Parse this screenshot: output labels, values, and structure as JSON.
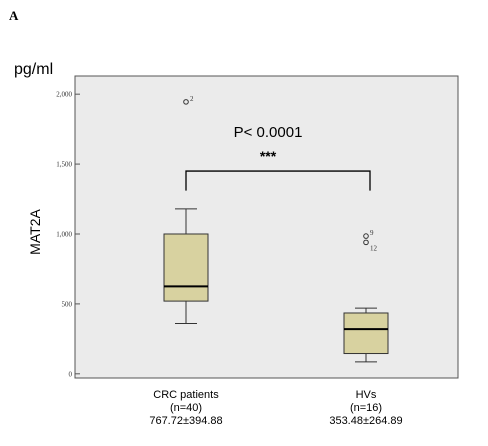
{
  "panel_label": "A",
  "chart_data": {
    "type": "box",
    "unit_label": "pg/ml",
    "ylabel": "MAT2A",
    "ylim": [
      -30,
      2130
    ],
    "yticks": [
      0,
      500,
      1000,
      1500,
      2000
    ],
    "ytick_labels": [
      "0",
      "500",
      "1,000",
      "1,500",
      "2,000"
    ],
    "plot_background": "#ebebeb",
    "box_color": "#d8d2a0",
    "groups": [
      {
        "label_lines": [
          "CRC patients",
          "(n=40)",
          "767.72±394.88"
        ],
        "whisker_low": 360,
        "q1": 520,
        "median": 625,
        "q3": 1000,
        "whisker_high": 1180,
        "outliers": [
          {
            "label": "2",
            "value": 1945
          }
        ]
      },
      {
        "label_lines": [
          "HVs",
          "(n=16)",
          "353.48±264.89"
        ],
        "whisker_low": 85,
        "q1": 145,
        "median": 320,
        "q3": 435,
        "whisker_high": 470,
        "outliers": [
          {
            "label": "9",
            "value": 985
          },
          {
            "label": "12",
            "value": 940
          }
        ]
      }
    ],
    "annotation": {
      "pvalue": "P< 0.0001",
      "stars": "***",
      "bracket_value": 1450,
      "bracket_drop": 1310
    }
  }
}
